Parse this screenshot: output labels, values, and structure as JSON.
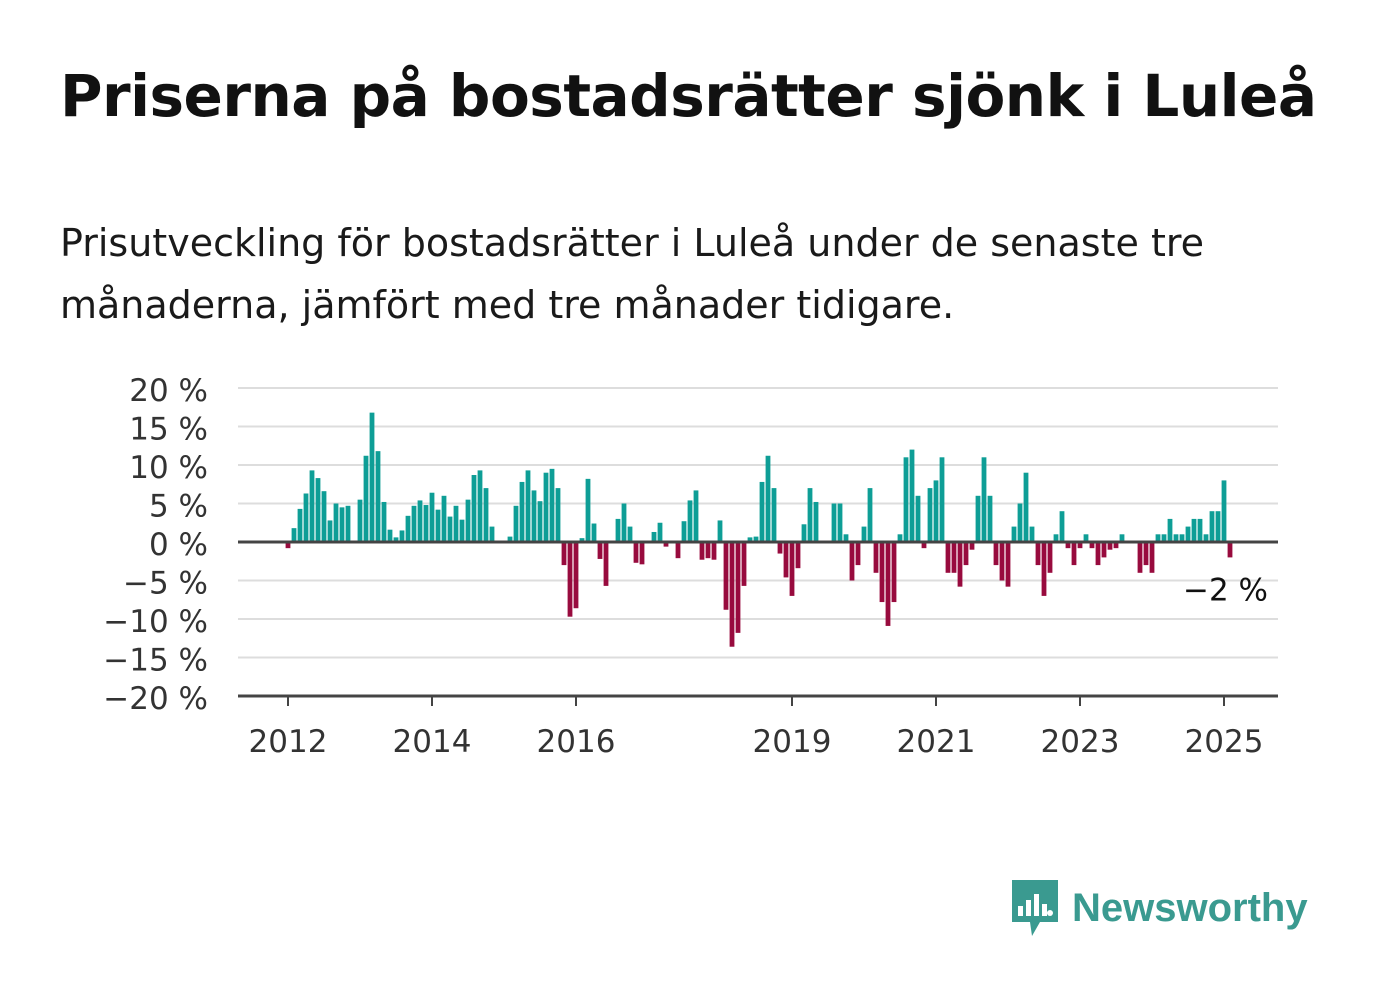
{
  "title": "Priserna på bostadsrätter sjönk i Luleå",
  "subtitle": "Prisutveckling för bostadsrätter i Luleå under de senaste tre månaderna, jämfört med tre månader tidigare.",
  "brand": {
    "name": "Newsworthy",
    "icon": "newsworthy-logo-icon"
  },
  "colors": {
    "positive": "#0e9e96",
    "negative": "#980b3e",
    "grid": "#dddddd",
    "axis": "#444444",
    "text": "#333333",
    "brand": "#3a9a90"
  },
  "chart_data": {
    "type": "bar",
    "x_start": 2012.0,
    "x_step_months": 1,
    "xticks": [
      2012,
      2014,
      2016,
      2019,
      2021,
      2023,
      2025
    ],
    "xtick_labels": [
      "2012",
      "2014",
      "2016",
      "2019",
      "2021",
      "2023",
      "2025"
    ],
    "ylim": [
      -20,
      20
    ],
    "yticks": [
      20,
      15,
      10,
      5,
      0,
      -5,
      -10,
      -15,
      -20
    ],
    "ytick_labels": [
      "20 %",
      "15 %",
      "10 %",
      "5 %",
      "0 %",
      "−5 %",
      "−10 %",
      "−15 %",
      "−20 %"
    ],
    "grid": true,
    "last_value_label": "−2 %",
    "values": [
      -0.8,
      1.8,
      4.3,
      6.3,
      9.3,
      8.3,
      6.6,
      2.8,
      5.0,
      4.5,
      4.7,
      0,
      5.5,
      11.2,
      16.8,
      11.8,
      5.2,
      1.6,
      0.6,
      1.5,
      3.4,
      4.7,
      5.4,
      4.8,
      6.4,
      4.2,
      6.0,
      3.3,
      4.7,
      2.9,
      5.5,
      8.7,
      9.3,
      7.0,
      2.0,
      0,
      0,
      0.7,
      4.7,
      7.8,
      9.3,
      6.7,
      5.3,
      9.0,
      9.5,
      7.0,
      -3.0,
      -9.7,
      -8.6,
      0.5,
      8.2,
      2.4,
      -2.2,
      -5.7,
      0,
      3.0,
      5.0,
      2.0,
      -2.7,
      -2.9,
      0,
      1.3,
      2.5,
      -0.6,
      0,
      -2.1,
      2.7,
      5.4,
      6.7,
      -2.3,
      -2.1,
      -2.3,
      2.8,
      -8.8,
      -13.6,
      -11.8,
      -5.7,
      0.6,
      0.7,
      7.8,
      11.2,
      7.0,
      -1.5,
      -4.6,
      -7.0,
      -3.4,
      2.3,
      7.0,
      5.2,
      0,
      0,
      5.0,
      5.0,
      1.0,
      -5.0,
      -3.0,
      2.0,
      7.0,
      -4.0,
      -7.8,
      -10.9,
      -7.8,
      1.0,
      11.0,
      12.0,
      6.0,
      -0.8,
      7.0,
      8.0,
      11.0,
      -4.0,
      -4.0,
      -5.8,
      -3.0,
      -1.0,
      6.0,
      11.0,
      6.0,
      -3.0,
      -5.0,
      -5.8,
      2.0,
      5.0,
      9.0,
      2.0,
      -3.0,
      -7.0,
      -4.0,
      1.0,
      4.0,
      -0.8,
      -3.0,
      -0.8,
      1.0,
      -0.8,
      -3.0,
      -2.0,
      -1.0,
      -0.8,
      1.0,
      0,
      0,
      -4.0,
      -3.0,
      -4.0,
      1.0,
      1.0,
      3.0,
      1.0,
      1.0,
      2.0,
      3.0,
      3.0,
      1.0,
      4.0,
      4.0,
      8.0,
      -2.0
    ]
  }
}
